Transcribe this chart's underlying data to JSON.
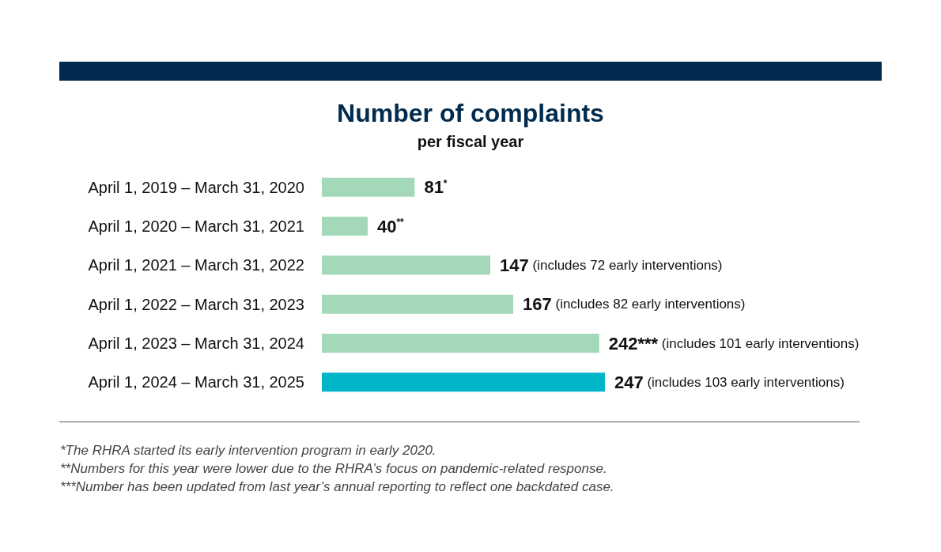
{
  "chart_data": {
    "type": "bar",
    "orientation": "horizontal",
    "title": "Number of complaints",
    "subtitle": "per fiscal year",
    "categories": [
      "April 1, 2019 – March 31, 2020",
      "April 1, 2020 – March 31, 2021",
      "April 1, 2021 – March 31, 2022",
      "April 1, 2022 – March 31, 2023",
      "April 1, 2023 – March 31, 2024",
      "April 1, 2024 – March 31, 2025"
    ],
    "values": [
      81,
      40,
      147,
      167,
      242,
      247
    ],
    "colors": [
      "#a3d9b9",
      "#a3d9b9",
      "#a3d9b9",
      "#a3d9b9",
      "#a3d9b9",
      "#00b5c8"
    ],
    "value_labels": [
      "81$^{*}$",
      "40$^{**}$",
      "147 (includes 72 early interventions)",
      "167 (includes 82 early interventions)",
      "242*** (includes 101 early interventions)",
      "247 (includes 103 early interventions)"
    ],
    "grid": false,
    "annotations": [
      "*The RHRA started its early intervention program in early 2020.",
      "**Numbers for this year were lower due to the RHRA’s focus on pandemic-related response.",
      "***Number has been updated from last year’s annual reporting to reflect one backdated case."
    ]
  }
}
